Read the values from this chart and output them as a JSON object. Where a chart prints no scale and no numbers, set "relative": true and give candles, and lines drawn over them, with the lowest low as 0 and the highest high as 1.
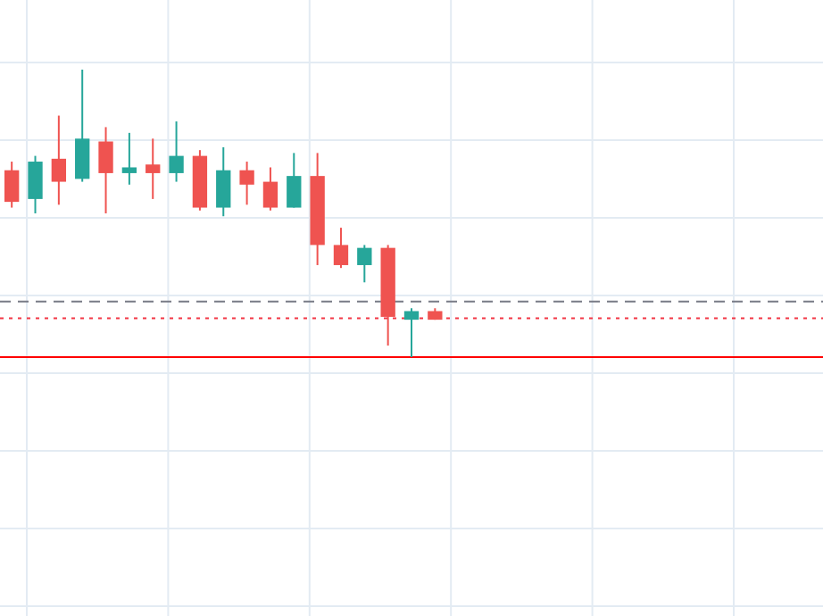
{
  "chart_data": {
    "type": "candlestick",
    "relative": true,
    "grid": true,
    "categories": [
      null,
      null,
      null,
      null,
      null,
      null,
      null,
      null,
      null,
      null,
      null,
      null,
      null,
      null,
      null,
      null,
      null,
      null,
      null,
      null,
      null,
      null,
      null,
      null,
      null,
      null,
      null,
      null,
      null,
      null,
      null,
      null,
      null,
      null,
      null
    ],
    "ohlc": [
      [
        0.65,
        0.68,
        0.52,
        0.54
      ],
      [
        0.55,
        0.7,
        0.5,
        0.68
      ],
      [
        0.69,
        0.84,
        0.53,
        0.61
      ],
      [
        0.62,
        1.0,
        0.61,
        0.76
      ],
      [
        0.75,
        0.8,
        0.5,
        0.64
      ],
      [
        0.64,
        0.78,
        0.6,
        0.66
      ],
      [
        0.67,
        0.76,
        0.55,
        0.64
      ],
      [
        0.64,
        0.82,
        0.61,
        0.7
      ],
      [
        0.7,
        0.72,
        0.51,
        0.52
      ],
      [
        0.52,
        0.73,
        0.49,
        0.65
      ],
      [
        0.65,
        0.68,
        0.53,
        0.6
      ],
      [
        0.61,
        0.66,
        0.51,
        0.52
      ],
      [
        0.52,
        0.71,
        0.52,
        0.63
      ],
      [
        0.63,
        0.71,
        0.32,
        0.39
      ],
      [
        0.39,
        0.45,
        0.31,
        0.32
      ],
      [
        0.32,
        0.39,
        0.26,
        0.38
      ],
      [
        0.38,
        0.39,
        0.04,
        0.14
      ],
      [
        0.13,
        0.17,
        0,
        0.16
      ],
      [
        0.16,
        0.17,
        0.13,
        0.13
      ],
      null,
      null,
      null,
      null,
      null,
      null,
      null,
      null,
      null,
      null,
      null,
      null,
      null,
      null,
      null,
      null
    ],
    "colors": [
      "#ef5350",
      "#26a69a",
      "#ef5350",
      "#26a69a",
      "#ef5350",
      "#26a69a",
      "#ef5350",
      "#26a69a",
      "#ef5350",
      "#26a69a",
      "#ef5350",
      "#ef5350",
      "#26a69a",
      "#ef5350",
      "#ef5350",
      "#26a69a",
      "#ef5350",
      "#26a69a",
      "#ef5350",
      null,
      null,
      null,
      null,
      null,
      null,
      null,
      null,
      null,
      null,
      null,
      null,
      null,
      null,
      null,
      null
    ],
    "ref_lines": [
      {
        "axis": "y",
        "value": 0.193,
        "label": null,
        "color": "#787b86",
        "line_style": "dashed"
      },
      {
        "axis": "y",
        "value": 0.135,
        "label": null,
        "color": "#f23645",
        "line_style": "dotted"
      },
      {
        "axis": "y",
        "value": 0,
        "label": null,
        "color": "#ff0000",
        "line_style": "solid"
      }
    ]
  }
}
